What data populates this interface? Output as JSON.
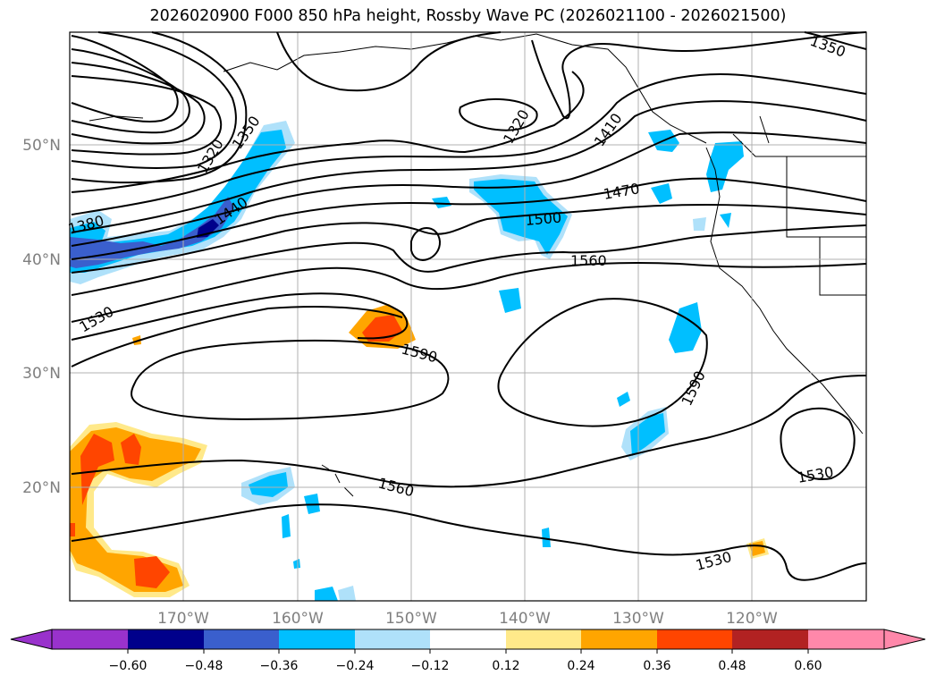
{
  "title": "2026020900 F000 850 hPa height, Rossby Wave PC (2026021100 - 2026021500)",
  "lat_labels": [
    "50°N",
    "40°N",
    "30°N",
    "20°N"
  ],
  "lon_labels": [
    "170°W",
    "160°W",
    "150°W",
    "140°W",
    "130°W",
    "120°W"
  ],
  "contour_labels": [
    "1350",
    "1320",
    "1410",
    "1470",
    "1500",
    "1560",
    "1440",
    "1380",
    "1530",
    "1590",
    "1590",
    "1560",
    "1530",
    "1530",
    "1350",
    "1320"
  ],
  "colorbar": {
    "ticks": [
      "−0.60",
      "−0.48",
      "−0.36",
      "−0.24",
      "−0.12",
      "0.12",
      "0.24",
      "0.36",
      "0.48",
      "0.60"
    ],
    "colors": [
      "#9932cc",
      "#00008b",
      "#3a5fcd",
      "#00bfff",
      "#afe1fa",
      "#ffffff",
      "#ffe98a",
      "#ffa500",
      "#ff4500",
      "#b22222",
      "#ff88aa"
    ]
  },
  "colors": {
    "neg_strong": "#3a5fcd",
    "neg_mid": "#00bfff",
    "neg_weak": "#afe1fa",
    "pos_weak": "#ffe98a",
    "pos_mid": "#ffa500",
    "pos_strong": "#ff4500",
    "darkblue": "#00008b",
    "grid": "#b0b0b0"
  }
}
